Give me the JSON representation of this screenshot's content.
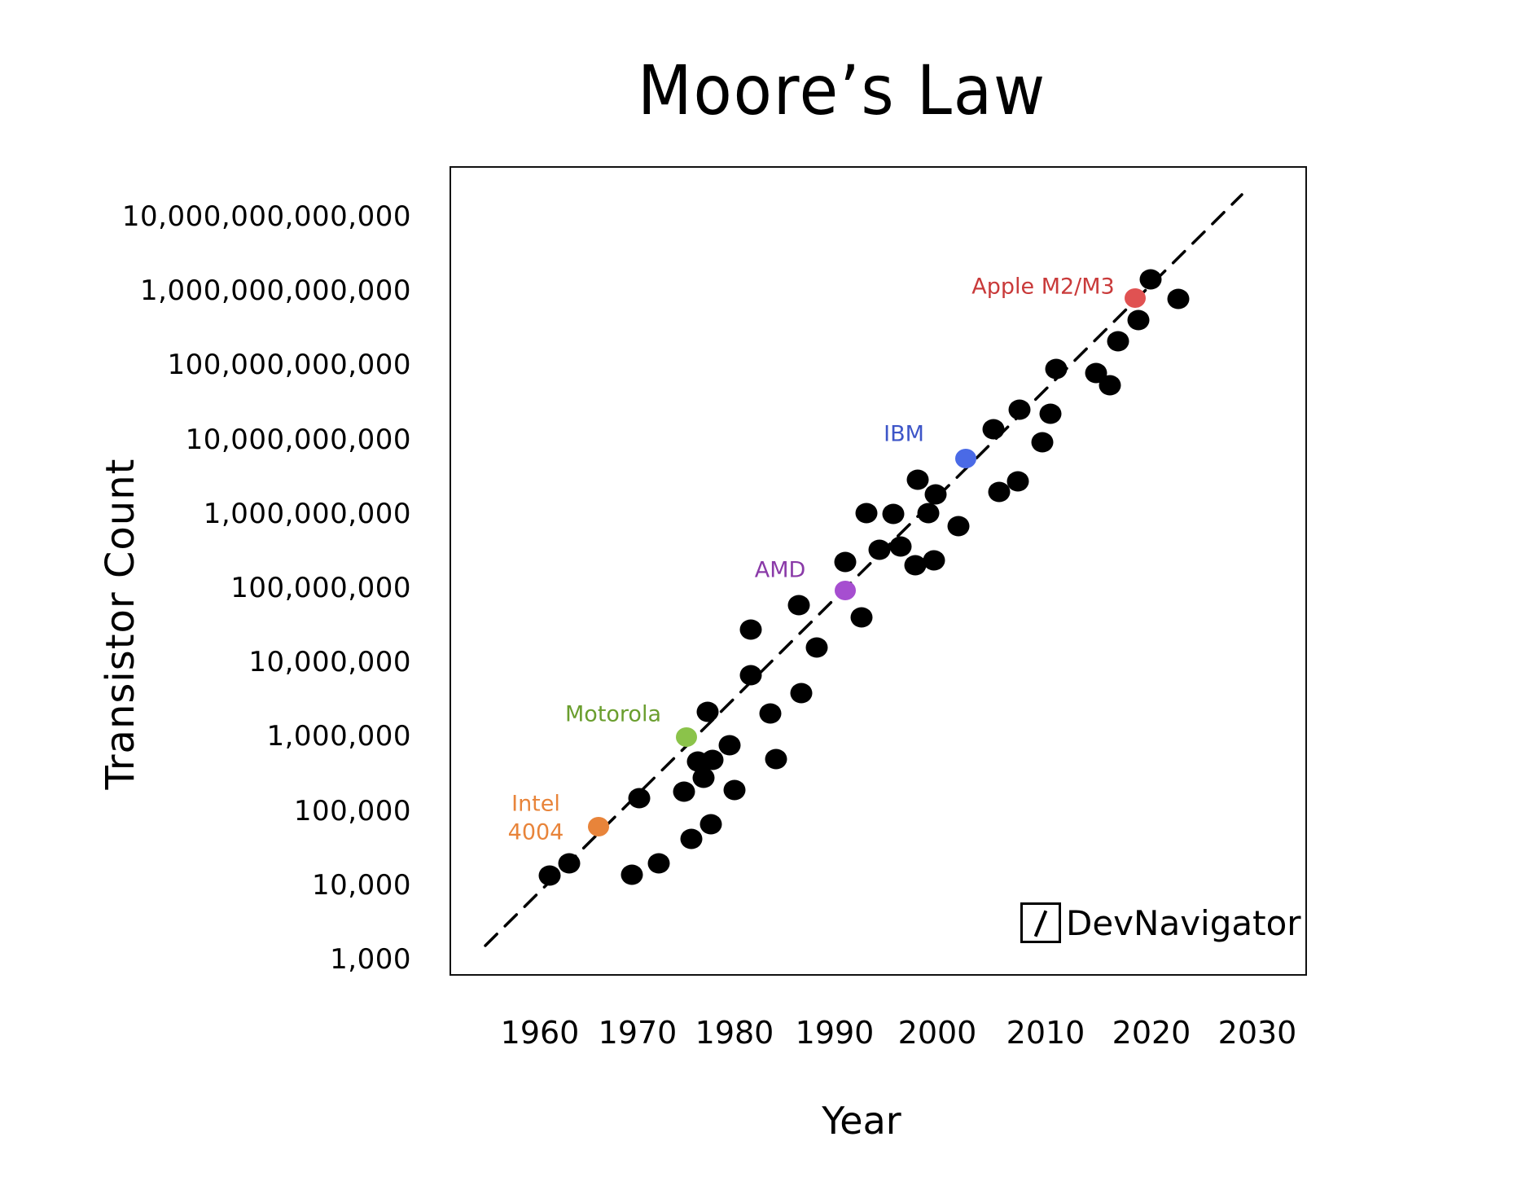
{
  "chart_data": {
    "type": "scatter",
    "title": "Moore’s Law",
    "xlabel": "Year",
    "ylabel": "Transistor Count",
    "y_scale": "log",
    "ylim": [
      1000,
      10000000000000
    ],
    "xlim": [
      1960,
      2030
    ],
    "x_ticks": [
      "1960",
      "1970",
      "1980",
      "1990",
      "2000",
      "2010",
      "2020",
      "2030"
    ],
    "y_ticks": [
      "10,000,000,000,000",
      "1,000,000,000,000",
      "100,000,000,000",
      "10,000,000,000",
      "1,000,000,000",
      "100,000,000",
      "10,000,000",
      "1,000,000",
      "100,000",
      "10,000",
      "1,000"
    ],
    "grid": false,
    "legend": "none",
    "trend_line": {
      "style": "dashed",
      "from": {
        "year": 1955,
        "count": 1300
      },
      "to": {
        "year": 2029,
        "count": 20000000000000
      }
    },
    "highlighted": [
      {
        "label": "Intel 4004",
        "year": 1966,
        "count": 50000,
        "color": "#e8843a"
      },
      {
        "label": "Motorola",
        "year": 1974,
        "count": 800000,
        "color": "#8bc34a"
      },
      {
        "label": "AMD",
        "year": 1990,
        "count": 80000000,
        "color": "#a64ed0"
      },
      {
        "label": "IBM",
        "year": 2001,
        "count": 5000000000,
        "color": "#4a6ae6"
      },
      {
        "label": "Apple M2/M3",
        "year": 2018,
        "count": 800000000000,
        "color": "#e05252"
      }
    ],
    "points": [
      {
        "year": 1960,
        "count": 13000
      },
      {
        "year": 1962,
        "count": 20000
      },
      {
        "year": 1968,
        "count": 32000
      },
      {
        "year": 1970,
        "count": 42000
      },
      {
        "year": 1973,
        "count": 35000
      },
      {
        "year": 1975,
        "count": 55000
      },
      {
        "year": 1969,
        "count": 145000
      },
      {
        "year": 1974,
        "count": 150000
      },
      {
        "year": 1976,
        "count": 240000
      },
      {
        "year": 1979,
        "count": 155000
      },
      {
        "year": 1975,
        "count": 420000
      },
      {
        "year": 1976,
        "count": 420000
      },
      {
        "year": 1978,
        "count": 650000
      },
      {
        "year": 1976,
        "count": 1800000
      },
      {
        "year": 1982,
        "count": 1700000
      },
      {
        "year": 1982,
        "count": 430000
      },
      {
        "year": 1981,
        "count": 6000000
      },
      {
        "year": 1981,
        "count": 25000000
      },
      {
        "year": 1985,
        "count": 3300000
      },
      {
        "year": 1986,
        "count": 14000000
      },
      {
        "year": 1985,
        "count": 50000000
      },
      {
        "year": 1990,
        "count": 200000000
      },
      {
        "year": 1992,
        "count": 32000000
      },
      {
        "year": 1992,
        "count": 900000000
      },
      {
        "year": 1994,
        "count": 250000000
      },
      {
        "year": 1995,
        "count": 900000000
      },
      {
        "year": 1997,
        "count": 300000000
      },
      {
        "year": 1997,
        "count": 140000000
      },
      {
        "year": 1998,
        "count": 220000000
      },
      {
        "year": 1998,
        "count": 900000000
      },
      {
        "year": 1998,
        "count": 1600000000
      },
      {
        "year": 1997,
        "count": 2600000000
      },
      {
        "year": 2000,
        "count": 600000000
      },
      {
        "year": 2005,
        "count": 1800000000
      },
      {
        "year": 2007,
        "count": 2800000000
      },
      {
        "year": 2004,
        "count": 13000000000
      },
      {
        "year": 2007,
        "count": 23000000000
      },
      {
        "year": 2009,
        "count": 8000000000
      },
      {
        "year": 2010,
        "count": 21000000000
      },
      {
        "year": 2011,
        "count": 85000000000
      },
      {
        "year": 2015,
        "count": 75000000000
      },
      {
        "year": 2016,
        "count": 50000000000
      },
      {
        "year": 2017,
        "count": 200000000000
      },
      {
        "year": 2018,
        "count": 400000000000
      },
      {
        "year": 2019,
        "count": 1300000000000
      },
      {
        "year": 2021,
        "count": 750000000000
      }
    ]
  },
  "watermark": {
    "text": "DevNavigator"
  }
}
